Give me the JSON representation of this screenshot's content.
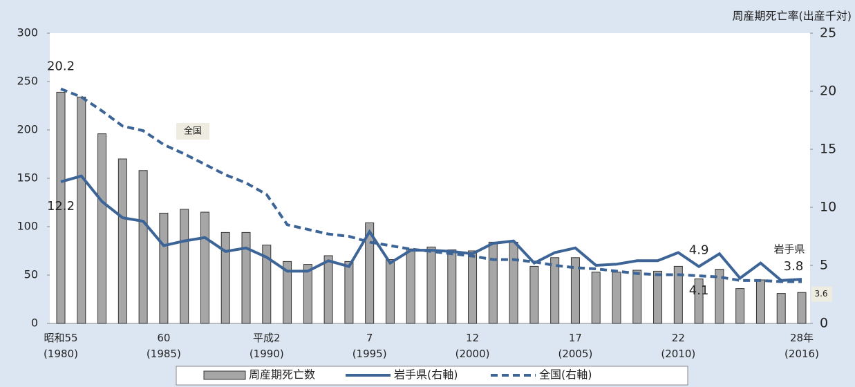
{
  "chart_data": {
    "type": "bar-line",
    "y2_title": "周産期死亡率(出産千対)",
    "categories": [
      "昭和55\n(1980)",
      null,
      null,
      null,
      null,
      "60\n(1985)",
      null,
      null,
      null,
      null,
      "平成2\n(1990)",
      null,
      null,
      null,
      null,
      "7\n(1995)",
      null,
      null,
      null,
      null,
      "12\n(2000)",
      null,
      null,
      null,
      null,
      "17\n(2005)",
      null,
      null,
      null,
      null,
      "22\n(2010)",
      null,
      null,
      null,
      null,
      null,
      "28年\n(2016)"
    ],
    "series": [
      {
        "name": "周産期死亡数",
        "type": "bar",
        "color": "#a6a6a6",
        "values": [
          239,
          234,
          196,
          170,
          158,
          114,
          118,
          115,
          94,
          94,
          81,
          64,
          61,
          70,
          64,
          104,
          66,
          77,
          79,
          76,
          75,
          84,
          84,
          59,
          68,
          68,
          53,
          53,
          55,
          54,
          59,
          46,
          56,
          36,
          45,
          31,
          32
        ]
      },
      {
        "name": "岩手県(右軸)",
        "type": "line",
        "axis": "y2",
        "color": "#3c6496",
        "dash": false,
        "values": [
          12.2,
          12.7,
          10.5,
          9.1,
          8.8,
          6.7,
          7.1,
          7.4,
          6.2,
          6.5,
          5.7,
          4.5,
          4.5,
          5.4,
          4.9,
          7.9,
          5.2,
          6.3,
          6.3,
          6.2,
          6.0,
          6.9,
          7.1,
          5.2,
          6.1,
          6.5,
          5.0,
          5.1,
          5.4,
          5.4,
          6.1,
          4.9,
          6.0,
          3.9,
          5.2,
          3.7,
          3.8
        ]
      },
      {
        "name": "全国(右軸)",
        "type": "line",
        "axis": "y2",
        "color": "#3c6496",
        "dash": true,
        "values": [
          20.2,
          19.5,
          18.3,
          17.0,
          16.6,
          15.4,
          14.6,
          13.7,
          12.8,
          12.1,
          11.1,
          8.5,
          8.1,
          7.7,
          7.5,
          7.0,
          6.7,
          6.4,
          6.2,
          6.0,
          5.8,
          5.5,
          5.5,
          5.3,
          5.0,
          4.8,
          4.7,
          4.5,
          4.3,
          4.2,
          4.2,
          4.1,
          4.0,
          3.7,
          3.7,
          3.6,
          3.6
        ]
      }
    ],
    "annotations": [
      "全国",
      "岩手県"
    ],
    "ylim": [
      0,
      300
    ],
    "yticks": [
      0,
      50,
      100,
      150,
      200,
      250,
      300
    ],
    "y2lim": [
      0,
      25
    ],
    "y2ticks": [
      0,
      5,
      10,
      15,
      20,
      25
    ],
    "legend": "bottom",
    "grid": false
  }
}
